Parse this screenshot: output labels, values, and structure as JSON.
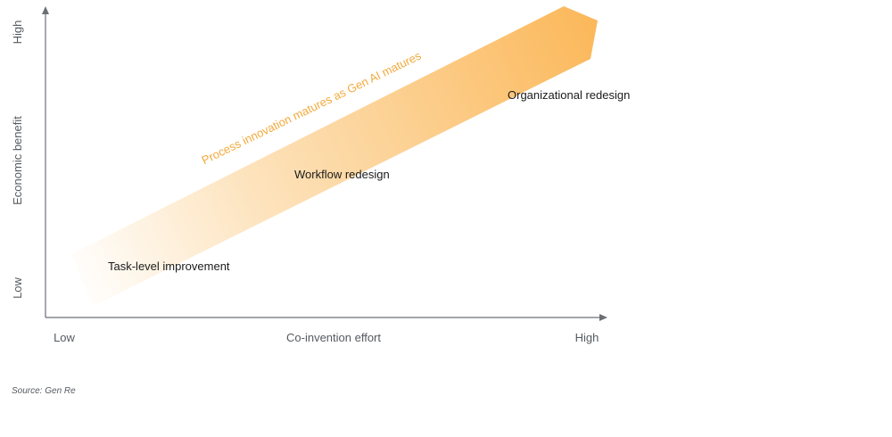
{
  "y_axis": {
    "title": "Economic benefit",
    "high_label": "High",
    "low_label": "Low"
  },
  "x_axis": {
    "title": "Co-invention effort",
    "low_label": "Low",
    "high_label": "High"
  },
  "arrow": {
    "caption": "Process innovation matures as Gen AI matures",
    "gradient_start": "#ffffff",
    "gradient_end": "#fbb85a"
  },
  "stages": [
    {
      "label": "Task-level improvement"
    },
    {
      "label": "Workflow redesign"
    },
    {
      "label": "Organizational redesign"
    }
  ],
  "source": "Source: Gen Re",
  "colors": {
    "axis": "#6b6f74",
    "axis_text": "#555a60",
    "caption": "#f2a93b",
    "stage_text": "#1a1a1a"
  }
}
